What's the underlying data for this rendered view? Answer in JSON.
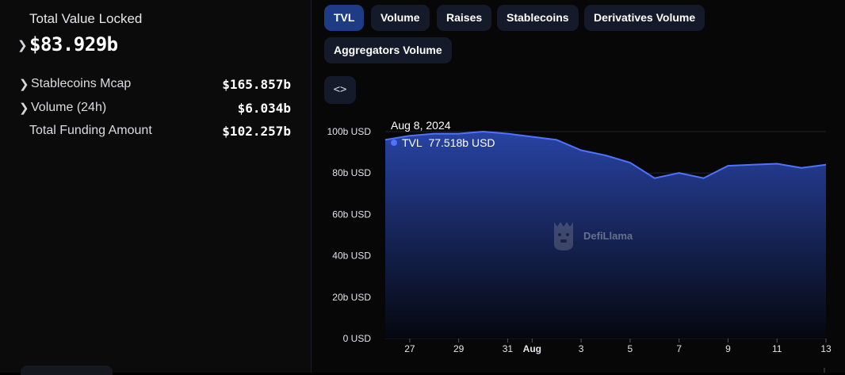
{
  "summary": {
    "tvl_label": "Total Value Locked",
    "tvl_value": "$83.929b",
    "stats": [
      {
        "label": "Stablecoins Mcap",
        "value": "$165.857b",
        "expandable": true
      },
      {
        "label": "Volume (24h)",
        "value": "$6.034b",
        "expandable": true
      },
      {
        "label": "Total Funding Amount",
        "value": "$102.257b",
        "expandable": false
      }
    ]
  },
  "tabs": {
    "tvl": "TVL",
    "volume": "Volume",
    "raises": "Raises",
    "stablecoins": "Stablecoins",
    "derivatives": "Derivatives Volume",
    "aggregators": "Aggregators Volume",
    "active": "TVL"
  },
  "embed": {
    "icon": "code-embed-icon",
    "label": "<>"
  },
  "tooltip": {
    "date": "Aug 8, 2024",
    "series": "TVL",
    "value": "77.518b USD"
  },
  "watermark": {
    "text": "DefiLlama",
    "icon": "llama-logo-icon"
  },
  "colors": {
    "accent": "#4f72ff",
    "active_tab": "#1e3c86",
    "tab": "#141a2a",
    "area_top": "#2843a3"
  },
  "chart_data": {
    "type": "area",
    "x": [
      "Jul 26",
      "Jul 27",
      "Jul 28",
      "Jul 29",
      "Jul 30",
      "Jul 31",
      "Aug 1",
      "Aug 2",
      "Aug 3",
      "Aug 4",
      "Aug 5",
      "Aug 6",
      "Aug 7",
      "Aug 8",
      "Aug 9",
      "Aug 10",
      "Aug 11",
      "Aug 12",
      "Aug 13"
    ],
    "series": [
      {
        "name": "TVL",
        "values": [
          96,
          98,
          99,
          99,
          100,
          99,
          97.5,
          96,
          91,
          88.5,
          85,
          77.5,
          80,
          77.5,
          83.5,
          84,
          84.5,
          82.5,
          84
        ]
      }
    ],
    "ylim": [
      0,
      100
    ],
    "yticks": [
      "100b USD",
      "80b USD",
      "60b USD",
      "40b USD",
      "20b USD",
      "0 USD"
    ],
    "xticks": [
      {
        "at": "Jul 27",
        "label": "27"
      },
      {
        "at": "Jul 29",
        "label": "29"
      },
      {
        "at": "Jul 31",
        "label": "31"
      },
      {
        "at": "Aug 1",
        "label": "Aug",
        "bold": true
      },
      {
        "at": "Aug 3",
        "label": "3"
      },
      {
        "at": "Aug 5",
        "label": "5"
      },
      {
        "at": "Aug 7",
        "label": "7"
      },
      {
        "at": "Aug 9",
        "label": "9"
      },
      {
        "at": "Aug 11",
        "label": "11"
      },
      {
        "at": "Aug 13",
        "label": "13"
      }
    ],
    "grid": true,
    "hover": "Aug 8"
  }
}
